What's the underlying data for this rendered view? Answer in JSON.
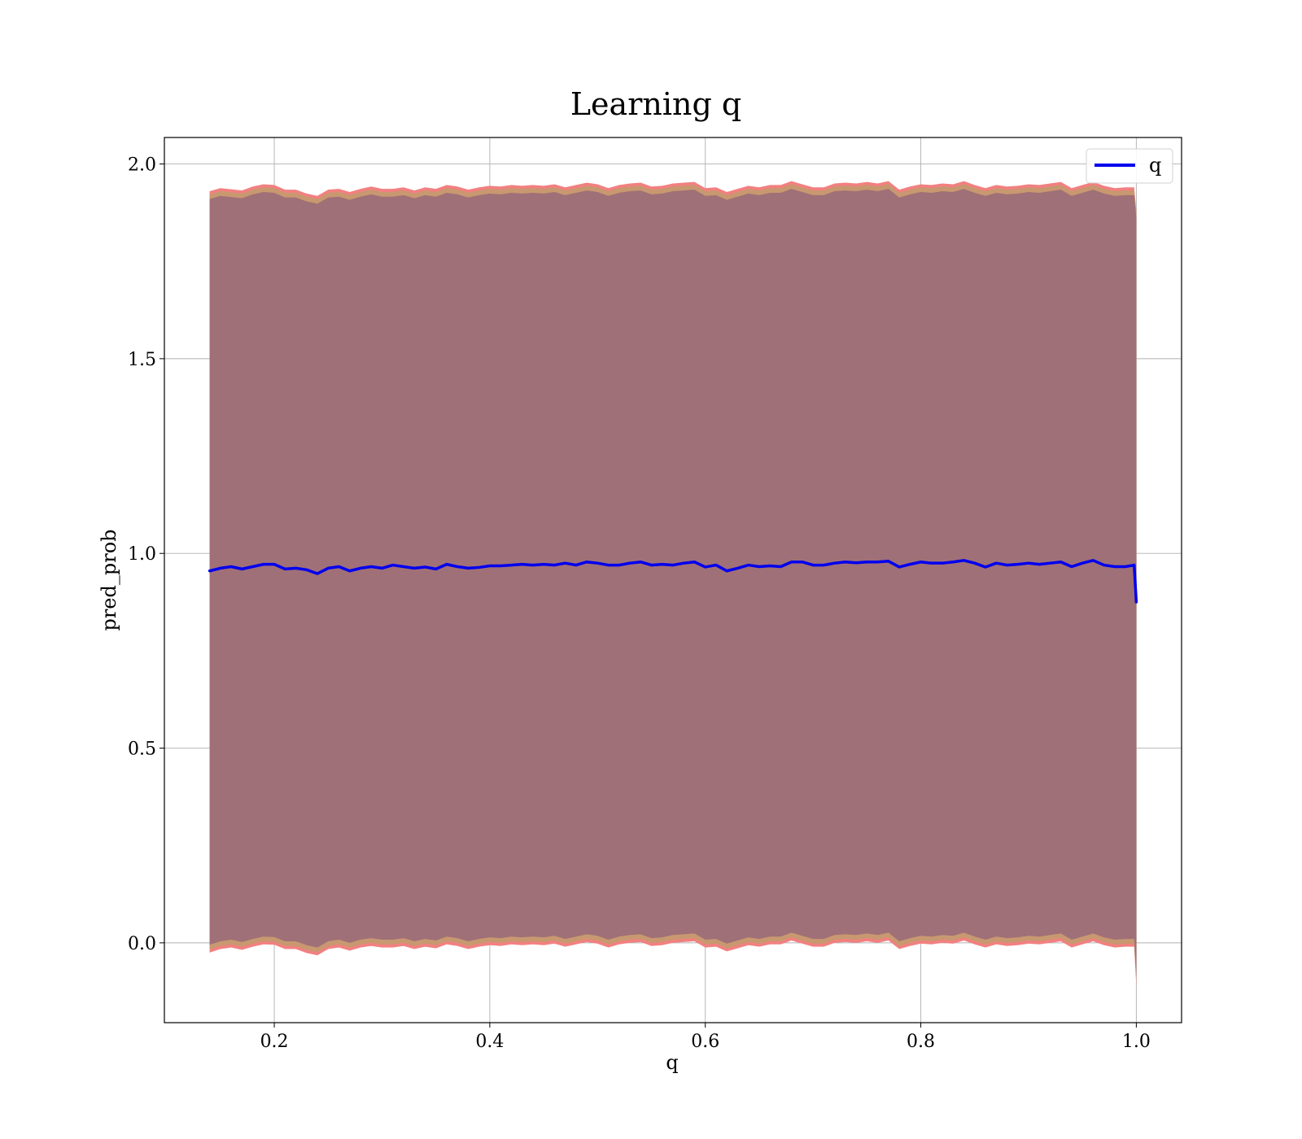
{
  "chart_data": {
    "type": "line",
    "title": "Learning q",
    "xlabel": "q",
    "ylabel": "pred_prob",
    "xlim": [
      0.098,
      1.042
    ],
    "ylim": [
      -0.205,
      2.068
    ],
    "x_ticks": [
      0.2,
      0.4,
      0.6,
      0.8,
      1.0
    ],
    "x_tick_labels": [
      "0.2",
      "0.4",
      "0.6",
      "0.8",
      "1.0"
    ],
    "y_ticks": [
      0.0,
      0.5,
      1.0,
      1.5,
      2.0
    ],
    "y_tick_labels": [
      "0.0",
      "0.5",
      "1.0",
      "1.5",
      "2.0"
    ],
    "grid": true,
    "legend": {
      "placement": "top-right",
      "entries": [
        "q"
      ]
    },
    "series": [
      {
        "name": "q",
        "color": "#0000ee",
        "x": [
          0.14,
          0.15,
          0.16,
          0.17,
          0.18,
          0.19,
          0.2,
          0.21,
          0.22,
          0.23,
          0.24,
          0.25,
          0.26,
          0.27,
          0.28,
          0.29,
          0.3,
          0.31,
          0.32,
          0.33,
          0.34,
          0.35,
          0.36,
          0.37,
          0.38,
          0.39,
          0.4,
          0.41,
          0.42,
          0.43,
          0.44,
          0.45,
          0.46,
          0.47,
          0.48,
          0.49,
          0.5,
          0.51,
          0.52,
          0.53,
          0.54,
          0.55,
          0.56,
          0.57,
          0.58,
          0.59,
          0.6,
          0.61,
          0.62,
          0.63,
          0.64,
          0.65,
          0.66,
          0.67,
          0.68,
          0.69,
          0.7,
          0.71,
          0.72,
          0.73,
          0.74,
          0.75,
          0.76,
          0.77,
          0.78,
          0.79,
          0.8,
          0.81,
          0.82,
          0.83,
          0.84,
          0.85,
          0.86,
          0.87,
          0.88,
          0.89,
          0.9,
          0.91,
          0.92,
          0.93,
          0.94,
          0.95,
          0.96,
          0.97,
          0.98,
          0.99,
          0.998,
          1.0
        ],
        "values": [
          0.955,
          0.962,
          0.966,
          0.96,
          0.966,
          0.972,
          0.972,
          0.96,
          0.962,
          0.958,
          0.948,
          0.962,
          0.966,
          0.955,
          0.962,
          0.966,
          0.962,
          0.97,
          0.966,
          0.962,
          0.965,
          0.96,
          0.972,
          0.966,
          0.962,
          0.964,
          0.968,
          0.968,
          0.97,
          0.972,
          0.97,
          0.972,
          0.97,
          0.975,
          0.97,
          0.978,
          0.975,
          0.97,
          0.97,
          0.975,
          0.978,
          0.97,
          0.972,
          0.97,
          0.975,
          0.978,
          0.965,
          0.97,
          0.955,
          0.962,
          0.97,
          0.966,
          0.968,
          0.966,
          0.978,
          0.978,
          0.97,
          0.97,
          0.975,
          0.978,
          0.976,
          0.978,
          0.978,
          0.98,
          0.965,
          0.972,
          0.978,
          0.975,
          0.975,
          0.978,
          0.982,
          0.975,
          0.965,
          0.975,
          0.97,
          0.972,
          0.975,
          0.972,
          0.975,
          0.978,
          0.966,
          0.975,
          0.982,
          0.97,
          0.966,
          0.966,
          0.97,
          0.875
        ]
      }
    ],
    "bands": [
      {
        "color": "#f28080",
        "x": [
          0.14,
          0.15,
          0.16,
          0.17,
          0.18,
          0.19,
          0.2,
          0.21,
          0.22,
          0.23,
          0.24,
          0.25,
          0.26,
          0.27,
          0.28,
          0.29,
          0.3,
          0.31,
          0.32,
          0.33,
          0.34,
          0.35,
          0.36,
          0.37,
          0.38,
          0.39,
          0.4,
          0.41,
          0.42,
          0.43,
          0.44,
          0.45,
          0.46,
          0.47,
          0.48,
          0.49,
          0.5,
          0.51,
          0.52,
          0.53,
          0.54,
          0.55,
          0.56,
          0.57,
          0.58,
          0.59,
          0.6,
          0.61,
          0.62,
          0.63,
          0.64,
          0.65,
          0.66,
          0.67,
          0.68,
          0.69,
          0.7,
          0.71,
          0.72,
          0.73,
          0.74,
          0.75,
          0.76,
          0.77,
          0.78,
          0.79,
          0.8,
          0.81,
          0.82,
          0.83,
          0.84,
          0.85,
          0.86,
          0.87,
          0.88,
          0.89,
          0.9,
          0.91,
          0.92,
          0.93,
          0.94,
          0.95,
          0.96,
          0.97,
          0.98,
          0.99,
          0.998,
          1.0
        ],
        "upper": [
          1.93,
          1.938,
          1.935,
          1.932,
          1.942,
          1.948,
          1.946,
          1.934,
          1.934,
          1.924,
          1.918,
          1.934,
          1.936,
          1.928,
          1.936,
          1.942,
          1.936,
          1.936,
          1.94,
          1.932,
          1.94,
          1.936,
          1.946,
          1.942,
          1.934,
          1.94,
          1.944,
          1.942,
          1.946,
          1.944,
          1.946,
          1.944,
          1.948,
          1.94,
          1.946,
          1.952,
          1.948,
          1.938,
          1.946,
          1.95,
          1.952,
          1.942,
          1.944,
          1.95,
          1.952,
          1.954,
          1.938,
          1.94,
          1.928,
          1.936,
          1.944,
          1.94,
          1.946,
          1.946,
          1.956,
          1.948,
          1.94,
          1.94,
          1.95,
          1.952,
          1.95,
          1.954,
          1.95,
          1.956,
          1.934,
          1.942,
          1.948,
          1.946,
          1.95,
          1.948,
          1.956,
          1.946,
          1.938,
          1.946,
          1.942,
          1.944,
          1.948,
          1.946,
          1.95,
          1.954,
          1.938,
          1.946,
          1.954,
          1.944,
          1.938,
          1.94,
          1.94,
          1.88
        ],
        "lower": [
          -0.025,
          -0.016,
          -0.012,
          -0.018,
          -0.01,
          -0.004,
          -0.005,
          -0.016,
          -0.016,
          -0.026,
          -0.032,
          -0.016,
          -0.012,
          -0.02,
          -0.012,
          -0.008,
          -0.012,
          -0.012,
          -0.008,
          -0.016,
          -0.01,
          -0.014,
          -0.004,
          -0.008,
          -0.016,
          -0.01,
          -0.006,
          -0.008,
          -0.004,
          -0.006,
          -0.004,
          -0.006,
          -0.002,
          -0.01,
          -0.004,
          0.002,
          -0.002,
          -0.012,
          -0.004,
          0.0,
          0.002,
          -0.008,
          -0.006,
          0.0,
          0.002,
          0.004,
          -0.012,
          -0.01,
          -0.022,
          -0.014,
          -0.006,
          -0.01,
          -0.004,
          -0.004,
          0.006,
          -0.002,
          -0.01,
          -0.01,
          0.0,
          0.002,
          0.0,
          0.004,
          0.0,
          0.006,
          -0.016,
          -0.008,
          -0.002,
          -0.004,
          0.0,
          -0.002,
          0.006,
          -0.004,
          -0.012,
          -0.004,
          -0.008,
          -0.006,
          -0.002,
          -0.004,
          0.0,
          0.004,
          -0.012,
          -0.004,
          0.004,
          -0.006,
          -0.012,
          -0.01,
          -0.01,
          -0.11
        ]
      },
      {
        "color": "#c89870",
        "x": [
          0.14,
          0.15,
          0.16,
          0.17,
          0.18,
          0.19,
          0.2,
          0.21,
          0.22,
          0.23,
          0.24,
          0.25,
          0.26,
          0.27,
          0.28,
          0.29,
          0.3,
          0.31,
          0.32,
          0.33,
          0.34,
          0.35,
          0.36,
          0.37,
          0.38,
          0.39,
          0.4,
          0.41,
          0.42,
          0.43,
          0.44,
          0.45,
          0.46,
          0.47,
          0.48,
          0.49,
          0.5,
          0.51,
          0.52,
          0.53,
          0.54,
          0.55,
          0.56,
          0.57,
          0.58,
          0.59,
          0.6,
          0.61,
          0.62,
          0.63,
          0.64,
          0.65,
          0.66,
          0.67,
          0.68,
          0.69,
          0.7,
          0.71,
          0.72,
          0.73,
          0.74,
          0.75,
          0.76,
          0.77,
          0.78,
          0.79,
          0.8,
          0.81,
          0.82,
          0.83,
          0.84,
          0.85,
          0.86,
          0.87,
          0.88,
          0.89,
          0.9,
          0.91,
          0.92,
          0.93,
          0.94,
          0.95,
          0.96,
          0.97,
          0.98,
          0.99,
          0.998,
          1.0
        ],
        "upper": [
          1.922,
          1.93,
          1.927,
          1.924,
          1.934,
          1.94,
          1.938,
          1.926,
          1.926,
          1.916,
          1.91,
          1.926,
          1.928,
          1.92,
          1.928,
          1.934,
          1.928,
          1.928,
          1.932,
          1.924,
          1.932,
          1.928,
          1.938,
          1.934,
          1.926,
          1.932,
          1.936,
          1.934,
          1.938,
          1.936,
          1.938,
          1.936,
          1.94,
          1.932,
          1.938,
          1.944,
          1.94,
          1.93,
          1.938,
          1.942,
          1.944,
          1.934,
          1.936,
          1.942,
          1.944,
          1.946,
          1.93,
          1.932,
          1.92,
          1.928,
          1.936,
          1.932,
          1.938,
          1.938,
          1.948,
          1.94,
          1.932,
          1.932,
          1.942,
          1.944,
          1.942,
          1.946,
          1.942,
          1.948,
          1.926,
          1.934,
          1.94,
          1.938,
          1.942,
          1.94,
          1.948,
          1.938,
          1.93,
          1.938,
          1.934,
          1.936,
          1.94,
          1.938,
          1.942,
          1.946,
          1.93,
          1.938,
          1.946,
          1.936,
          1.93,
          1.932,
          1.932,
          1.872
        ],
        "lower": [
          -0.017,
          -0.008,
          -0.004,
          -0.01,
          -0.002,
          0.004,
          0.003,
          -0.008,
          -0.008,
          -0.018,
          -0.024,
          -0.008,
          -0.004,
          -0.012,
          -0.004,
          0.0,
          -0.004,
          -0.004,
          0.0,
          -0.008,
          -0.002,
          -0.006,
          0.004,
          0.0,
          -0.008,
          -0.002,
          0.002,
          0.0,
          0.004,
          0.002,
          0.004,
          0.002,
          0.006,
          -0.002,
          0.004,
          0.01,
          0.006,
          -0.004,
          0.004,
          0.008,
          0.01,
          0.0,
          0.002,
          0.008,
          0.01,
          0.012,
          -0.004,
          -0.002,
          -0.014,
          -0.006,
          0.002,
          -0.002,
          0.004,
          0.004,
          0.014,
          0.006,
          -0.002,
          -0.002,
          0.008,
          0.01,
          0.008,
          0.012,
          0.008,
          0.014,
          -0.008,
          0.0,
          0.006,
          0.004,
          0.008,
          0.006,
          0.014,
          0.004,
          -0.004,
          0.004,
          0.0,
          0.002,
          0.006,
          0.004,
          0.008,
          0.012,
          -0.004,
          0.004,
          0.012,
          0.002,
          -0.004,
          -0.002,
          -0.002,
          -0.1
        ]
      },
      {
        "color": "#a07078",
        "x": [
          0.14,
          0.15,
          0.16,
          0.17,
          0.18,
          0.19,
          0.2,
          0.21,
          0.22,
          0.23,
          0.24,
          0.25,
          0.26,
          0.27,
          0.28,
          0.29,
          0.3,
          0.31,
          0.32,
          0.33,
          0.34,
          0.35,
          0.36,
          0.37,
          0.38,
          0.39,
          0.4,
          0.41,
          0.42,
          0.43,
          0.44,
          0.45,
          0.46,
          0.47,
          0.48,
          0.49,
          0.5,
          0.51,
          0.52,
          0.53,
          0.54,
          0.55,
          0.56,
          0.57,
          0.58,
          0.59,
          0.6,
          0.61,
          0.62,
          0.63,
          0.64,
          0.65,
          0.66,
          0.67,
          0.68,
          0.69,
          0.7,
          0.71,
          0.72,
          0.73,
          0.74,
          0.75,
          0.76,
          0.77,
          0.78,
          0.79,
          0.8,
          0.81,
          0.82,
          0.83,
          0.84,
          0.85,
          0.86,
          0.87,
          0.88,
          0.89,
          0.9,
          0.91,
          0.92,
          0.93,
          0.94,
          0.95,
          0.96,
          0.97,
          0.98,
          0.99,
          0.998,
          1.0
        ],
        "upper": [
          1.91,
          1.918,
          1.915,
          1.912,
          1.922,
          1.928,
          1.926,
          1.914,
          1.914,
          1.904,
          1.898,
          1.914,
          1.916,
          1.908,
          1.916,
          1.922,
          1.916,
          1.916,
          1.92,
          1.912,
          1.92,
          1.916,
          1.926,
          1.922,
          1.914,
          1.92,
          1.924,
          1.922,
          1.926,
          1.924,
          1.926,
          1.924,
          1.928,
          1.92,
          1.926,
          1.932,
          1.928,
          1.918,
          1.926,
          1.93,
          1.932,
          1.922,
          1.924,
          1.93,
          1.932,
          1.934,
          1.918,
          1.92,
          1.908,
          1.916,
          1.924,
          1.92,
          1.926,
          1.926,
          1.936,
          1.928,
          1.92,
          1.92,
          1.93,
          1.932,
          1.93,
          1.934,
          1.93,
          1.936,
          1.914,
          1.922,
          1.928,
          1.926,
          1.93,
          1.928,
          1.936,
          1.926,
          1.918,
          1.926,
          1.922,
          1.924,
          1.928,
          1.926,
          1.93,
          1.934,
          1.918,
          1.926,
          1.934,
          1.924,
          1.918,
          1.92,
          1.92,
          1.86
        ],
        "lower": [
          -0.005,
          0.004,
          0.008,
          0.002,
          0.01,
          0.016,
          0.015,
          0.004,
          0.004,
          -0.006,
          -0.012,
          0.004,
          0.008,
          0.0,
          0.008,
          0.012,
          0.008,
          0.008,
          0.012,
          0.004,
          0.01,
          0.006,
          0.016,
          0.012,
          0.004,
          0.01,
          0.014,
          0.012,
          0.016,
          0.014,
          0.016,
          0.014,
          0.018,
          0.01,
          0.016,
          0.022,
          0.018,
          0.008,
          0.016,
          0.02,
          0.022,
          0.012,
          0.014,
          0.02,
          0.022,
          0.024,
          0.008,
          0.01,
          -0.002,
          0.006,
          0.014,
          0.01,
          0.016,
          0.016,
          0.026,
          0.018,
          0.01,
          0.01,
          0.02,
          0.022,
          0.02,
          0.024,
          0.02,
          0.026,
          0.004,
          0.012,
          0.018,
          0.016,
          0.02,
          0.018,
          0.026,
          0.016,
          0.008,
          0.016,
          0.012,
          0.014,
          0.018,
          0.016,
          0.02,
          0.024,
          0.008,
          0.016,
          0.024,
          0.014,
          0.008,
          0.01,
          0.01,
          -0.088
        ]
      }
    ]
  }
}
